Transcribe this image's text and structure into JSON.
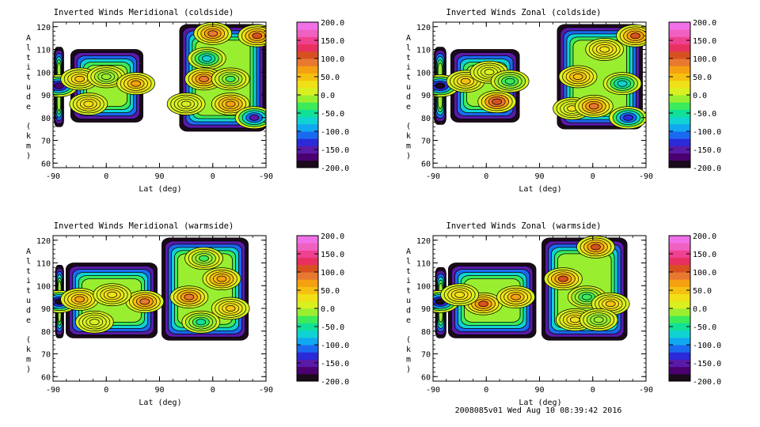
{
  "footer": "2008085v01 Wed Aug 10 08:39:42 2016",
  "colorbar": {
    "labels": [
      "200.0",
      "150.0",
      "100.0",
      "50.0",
      "0.0",
      "-50.0",
      "-100.0",
      "-150.0",
      "-200.0"
    ],
    "colors": [
      "#1a0a1a",
      "#4b0070",
      "#5a1aa8",
      "#2a2ad8",
      "#1a6af0",
      "#10a8f0",
      "#10d2d2",
      "#10e098",
      "#3ceb5a",
      "#9aee30",
      "#d8f020",
      "#f0e018",
      "#f5c010",
      "#f5a010",
      "#e87830",
      "#d85020",
      "#e83060",
      "#f04090",
      "#f060c0",
      "#f070e8"
    ]
  },
  "chart_data": [
    {
      "type": "heatmap",
      "title": "Inverted Winds Meridional (coldside)",
      "xlabel": "Lat (deg)",
      "ylabel": "Altitude (km)",
      "x_ticks": [
        "-90",
        "0",
        "90",
        "0",
        "-90"
      ],
      "y_ticks": [
        "60",
        "70",
        "80",
        "90",
        "100",
        "110",
        "120"
      ],
      "ylim": [
        58,
        122
      ],
      "zlim": [
        -200,
        200
      ],
      "regions": [
        {
          "x0": 2,
          "x1": 18,
          "y0": 76,
          "y1": 111
        },
        {
          "x0": 30,
          "x1": 152,
          "y0": 78,
          "y1": 110
        },
        {
          "x0": 214,
          "x1": 360,
          "y0": 74,
          "y1": 121
        }
      ],
      "features": [
        {
          "x": 10,
          "y": 94,
          "value": -180
        },
        {
          "x": 45,
          "y": 97,
          "value": 45
        },
        {
          "x": 90,
          "y": 98,
          "value": -20
        },
        {
          "x": 140,
          "y": 95,
          "value": 60
        },
        {
          "x": 60,
          "y": 86,
          "value": 30
        },
        {
          "x": 225,
          "y": 86,
          "value": 10
        },
        {
          "x": 260,
          "y": 106,
          "value": -70
        },
        {
          "x": 255,
          "y": 97,
          "value": 90
        },
        {
          "x": 300,
          "y": 97,
          "value": -30
        },
        {
          "x": 270,
          "y": 117,
          "value": 90
        },
        {
          "x": 345,
          "y": 116,
          "value": 100
        },
        {
          "x": 300,
          "y": 86,
          "value": 70
        },
        {
          "x": 340,
          "y": 80,
          "value": -150
        }
      ]
    },
    {
      "type": "heatmap",
      "title": "Inverted Winds Zonal (coldside)",
      "xlabel": "Lat (deg)",
      "ylabel": "Altitude (km)",
      "x_ticks": [
        "-90",
        "0",
        "90",
        "0",
        "-90"
      ],
      "y_ticks": [
        "60",
        "70",
        "80",
        "90",
        "100",
        "110",
        "120"
      ],
      "ylim": [
        58,
        122
      ],
      "zlim": [
        -200,
        200
      ],
      "regions": [
        {
          "x0": 2,
          "x1": 22,
          "y0": 77,
          "y1": 111
        },
        {
          "x0": 30,
          "x1": 146,
          "y0": 78,
          "y1": 110
        },
        {
          "x0": 210,
          "x1": 354,
          "y0": 75,
          "y1": 121
        }
      ],
      "features": [
        {
          "x": 12,
          "y": 94,
          "value": -190
        },
        {
          "x": 55,
          "y": 96,
          "value": 40
        },
        {
          "x": 108,
          "y": 87,
          "value": 110
        },
        {
          "x": 95,
          "y": 100,
          "value": 10
        },
        {
          "x": 130,
          "y": 96,
          "value": -40
        },
        {
          "x": 245,
          "y": 98,
          "value": 50
        },
        {
          "x": 235,
          "y": 84,
          "value": 20
        },
        {
          "x": 272,
          "y": 85,
          "value": 90
        },
        {
          "x": 320,
          "y": 95,
          "value": -70
        },
        {
          "x": 290,
          "y": 110,
          "value": 30
        },
        {
          "x": 342,
          "y": 116,
          "value": 100
        },
        {
          "x": 330,
          "y": 80,
          "value": -140
        }
      ]
    },
    {
      "type": "heatmap",
      "title": "Inverted Winds Meridional (warmside)",
      "xlabel": "Lat (deg)",
      "ylabel": "Altitude (km)",
      "x_ticks": [
        "-90",
        "0",
        "90",
        "0",
        "-90"
      ],
      "y_ticks": [
        "60",
        "70",
        "80",
        "90",
        "100",
        "110",
        "120"
      ],
      "ylim": [
        58,
        122
      ],
      "zlim": [
        -200,
        200
      ],
      "regions": [
        {
          "x0": 4,
          "x1": 18,
          "y0": 77,
          "y1": 109
        },
        {
          "x0": 22,
          "x1": 176,
          "y0": 77,
          "y1": 110
        },
        {
          "x0": 184,
          "x1": 330,
          "y0": 76,
          "y1": 121
        }
      ],
      "features": [
        {
          "x": 11,
          "y": 93,
          "value": -190
        },
        {
          "x": 45,
          "y": 94,
          "value": 60
        },
        {
          "x": 155,
          "y": 93,
          "value": 80
        },
        {
          "x": 100,
          "y": 96,
          "value": 30
        },
        {
          "x": 70,
          "y": 84,
          "value": 0
        },
        {
          "x": 230,
          "y": 95,
          "value": 90
        },
        {
          "x": 285,
          "y": 103,
          "value": 70
        },
        {
          "x": 255,
          "y": 112,
          "value": -30
        },
        {
          "x": 300,
          "y": 90,
          "value": 40
        },
        {
          "x": 250,
          "y": 84,
          "value": -50
        }
      ]
    },
    {
      "type": "heatmap",
      "title": "Inverted Winds Zonal (warmside)",
      "xlabel": "Lat (deg)",
      "ylabel": "Altitude (km)",
      "x_ticks": [
        "-90",
        "0",
        "90",
        "0",
        "-90"
      ],
      "y_ticks": [
        "60",
        "70",
        "80",
        "90",
        "100",
        "110",
        "120"
      ],
      "ylim": [
        58,
        122
      ],
      "zlim": [
        -200,
        200
      ],
      "regions": [
        {
          "x0": 4,
          "x1": 22,
          "y0": 77,
          "y1": 108
        },
        {
          "x0": 26,
          "x1": 174,
          "y0": 77,
          "y1": 110
        },
        {
          "x0": 184,
          "x1": 328,
          "y0": 76,
          "y1": 121
        }
      ],
      "features": [
        {
          "x": 12,
          "y": 93,
          "value": -190
        },
        {
          "x": 85,
          "y": 92,
          "value": 100
        },
        {
          "x": 45,
          "y": 96,
          "value": 30
        },
        {
          "x": 140,
          "y": 95,
          "value": 60
        },
        {
          "x": 220,
          "y": 103,
          "value": 100
        },
        {
          "x": 275,
          "y": 117,
          "value": 100
        },
        {
          "x": 260,
          "y": 95,
          "value": -40
        },
        {
          "x": 300,
          "y": 92,
          "value": 40
        },
        {
          "x": 240,
          "y": 85,
          "value": 30
        },
        {
          "x": 280,
          "y": 85,
          "value": -20
        }
      ]
    }
  ]
}
